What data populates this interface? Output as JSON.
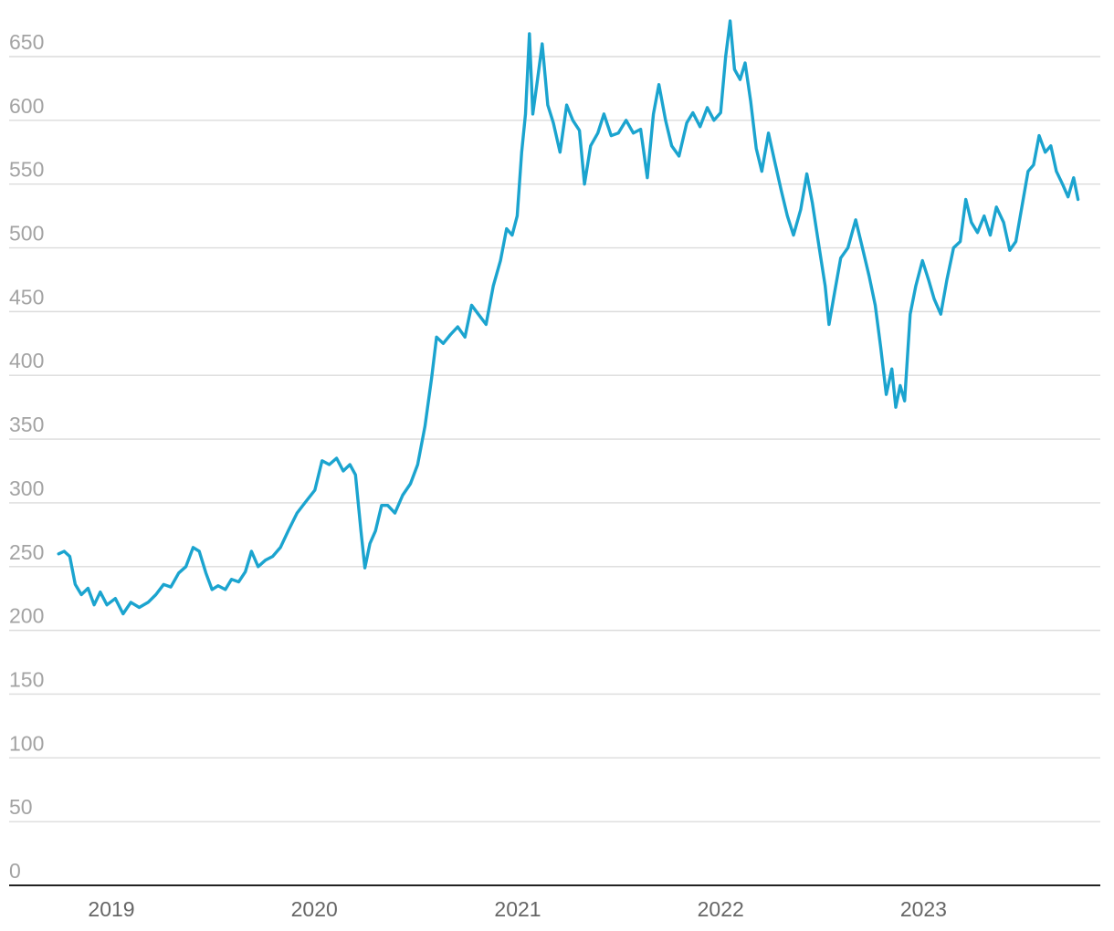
{
  "chart_data": {
    "type": "line",
    "title": "",
    "xlabel": "",
    "ylabel": "",
    "ylim": [
      0,
      650
    ],
    "yticks": [
      0,
      50,
      100,
      150,
      200,
      250,
      300,
      350,
      400,
      450,
      500,
      550,
      600,
      650
    ],
    "xlim": [
      "2018-07-01",
      "2023-11-15"
    ],
    "xticks": [
      {
        "date": "2019-01-01",
        "label": "2019"
      },
      {
        "date": "2020-01-01",
        "label": "2020"
      },
      {
        "date": "2021-01-01",
        "label": "2021"
      },
      {
        "date": "2022-01-01",
        "label": "2022"
      },
      {
        "date": "2023-01-01",
        "label": "2023"
      }
    ],
    "grid": true,
    "legend": "none",
    "colors": {
      "series": "#1ba4cf",
      "grid": "#dcdcdc",
      "axis": "#222222",
      "ytick": "#a3a3a3",
      "xtick": "#666666"
    },
    "series": [
      {
        "values": [
          [
            "2018-09-28",
            260
          ],
          [
            "2018-10-08",
            262
          ],
          [
            "2018-10-18",
            258
          ],
          [
            "2018-10-28",
            236
          ],
          [
            "2018-11-08",
            228
          ],
          [
            "2018-11-20",
            233
          ],
          [
            "2018-12-01",
            220
          ],
          [
            "2018-12-12",
            230
          ],
          [
            "2018-12-24",
            220
          ],
          [
            "2019-01-08",
            225
          ],
          [
            "2019-01-22",
            213
          ],
          [
            "2019-02-05",
            222
          ],
          [
            "2019-02-20",
            218
          ],
          [
            "2019-03-08",
            222
          ],
          [
            "2019-03-22",
            228
          ],
          [
            "2019-04-05",
            236
          ],
          [
            "2019-04-18",
            234
          ],
          [
            "2019-05-02",
            245
          ],
          [
            "2019-05-15",
            250
          ],
          [
            "2019-05-28",
            265
          ],
          [
            "2019-06-08",
            262
          ],
          [
            "2019-06-20",
            245
          ],
          [
            "2019-07-01",
            232
          ],
          [
            "2019-07-12",
            235
          ],
          [
            "2019-07-25",
            232
          ],
          [
            "2019-08-05",
            240
          ],
          [
            "2019-08-18",
            238
          ],
          [
            "2019-08-30",
            246
          ],
          [
            "2019-09-10",
            262
          ],
          [
            "2019-09-22",
            250
          ],
          [
            "2019-10-05",
            255
          ],
          [
            "2019-10-18",
            258
          ],
          [
            "2019-11-01",
            265
          ],
          [
            "2019-11-15",
            278
          ],
          [
            "2019-12-01",
            292
          ],
          [
            "2019-12-15",
            300
          ],
          [
            "2020-01-02",
            310
          ],
          [
            "2020-01-15",
            333
          ],
          [
            "2020-01-28",
            330
          ],
          [
            "2020-02-10",
            335
          ],
          [
            "2020-02-22",
            325
          ],
          [
            "2020-03-05",
            330
          ],
          [
            "2020-03-15",
            322
          ],
          [
            "2020-03-25",
            278
          ],
          [
            "2020-04-01",
            249
          ],
          [
            "2020-04-10",
            268
          ],
          [
            "2020-04-20",
            278
          ],
          [
            "2020-05-01",
            298
          ],
          [
            "2020-05-12",
            298
          ],
          [
            "2020-05-25",
            292
          ],
          [
            "2020-06-08",
            306
          ],
          [
            "2020-06-22",
            315
          ],
          [
            "2020-07-05",
            330
          ],
          [
            "2020-07-18",
            360
          ],
          [
            "2020-07-30",
            398
          ],
          [
            "2020-08-08",
            430
          ],
          [
            "2020-08-20",
            425
          ],
          [
            "2020-09-02",
            432
          ],
          [
            "2020-09-15",
            438
          ],
          [
            "2020-09-28",
            430
          ],
          [
            "2020-10-10",
            455
          ],
          [
            "2020-10-22",
            448
          ],
          [
            "2020-11-05",
            440
          ],
          [
            "2020-11-18",
            470
          ],
          [
            "2020-12-01",
            490
          ],
          [
            "2020-12-12",
            515
          ],
          [
            "2020-12-22",
            510
          ],
          [
            "2020-12-31",
            525
          ],
          [
            "2021-01-08",
            575
          ],
          [
            "2021-01-15",
            605
          ],
          [
            "2021-01-22",
            668
          ],
          [
            "2021-01-28",
            605
          ],
          [
            "2021-02-05",
            630
          ],
          [
            "2021-02-14",
            660
          ],
          [
            "2021-02-24",
            612
          ],
          [
            "2021-03-06",
            598
          ],
          [
            "2021-03-18",
            575
          ],
          [
            "2021-03-30",
            612
          ],
          [
            "2021-04-10",
            600
          ],
          [
            "2021-04-22",
            592
          ],
          [
            "2021-05-01",
            550
          ],
          [
            "2021-05-12",
            580
          ],
          [
            "2021-05-25",
            590
          ],
          [
            "2021-06-05",
            605
          ],
          [
            "2021-06-18",
            588
          ],
          [
            "2021-07-01",
            590
          ],
          [
            "2021-07-15",
            600
          ],
          [
            "2021-07-28",
            590
          ],
          [
            "2021-08-10",
            593
          ],
          [
            "2021-08-22",
            555
          ],
          [
            "2021-09-02",
            605
          ],
          [
            "2021-09-12",
            628
          ],
          [
            "2021-09-24",
            600
          ],
          [
            "2021-10-05",
            580
          ],
          [
            "2021-10-18",
            572
          ],
          [
            "2021-11-01",
            598
          ],
          [
            "2021-11-12",
            606
          ],
          [
            "2021-11-25",
            595
          ],
          [
            "2021-12-08",
            610
          ],
          [
            "2021-12-20",
            600
          ],
          [
            "2022-01-01",
            606
          ],
          [
            "2022-01-10",
            650
          ],
          [
            "2022-01-18",
            678
          ],
          [
            "2022-01-26",
            640
          ],
          [
            "2022-02-05",
            632
          ],
          [
            "2022-02-14",
            645
          ],
          [
            "2022-02-24",
            615
          ],
          [
            "2022-03-06",
            578
          ],
          [
            "2022-03-16",
            560
          ],
          [
            "2022-03-28",
            590
          ],
          [
            "2022-04-08",
            568
          ],
          [
            "2022-04-20",
            545
          ],
          [
            "2022-05-01",
            525
          ],
          [
            "2022-05-12",
            510
          ],
          [
            "2022-05-25",
            530
          ],
          [
            "2022-06-05",
            558
          ],
          [
            "2022-06-15",
            535
          ],
          [
            "2022-06-28",
            498
          ],
          [
            "2022-07-08",
            470
          ],
          [
            "2022-07-15",
            440
          ],
          [
            "2022-07-25",
            465
          ],
          [
            "2022-08-05",
            492
          ],
          [
            "2022-08-18",
            500
          ],
          [
            "2022-09-01",
            522
          ],
          [
            "2022-09-12",
            502
          ],
          [
            "2022-09-25",
            478
          ],
          [
            "2022-10-06",
            455
          ],
          [
            "2022-10-16",
            422
          ],
          [
            "2022-10-26",
            385
          ],
          [
            "2022-11-05",
            405
          ],
          [
            "2022-11-12",
            375
          ],
          [
            "2022-11-20",
            392
          ],
          [
            "2022-11-28",
            380
          ],
          [
            "2022-12-08",
            448
          ],
          [
            "2022-12-18",
            470
          ],
          [
            "2022-12-30",
            490
          ],
          [
            "2023-01-10",
            475
          ],
          [
            "2023-01-20",
            460
          ],
          [
            "2023-02-01",
            448
          ],
          [
            "2023-02-12",
            475
          ],
          [
            "2023-02-24",
            500
          ],
          [
            "2023-03-08",
            505
          ],
          [
            "2023-03-18",
            538
          ],
          [
            "2023-03-28",
            520
          ],
          [
            "2023-04-08",
            512
          ],
          [
            "2023-04-20",
            525
          ],
          [
            "2023-05-01",
            510
          ],
          [
            "2023-05-12",
            532
          ],
          [
            "2023-05-25",
            520
          ],
          [
            "2023-06-05",
            498
          ],
          [
            "2023-06-16",
            505
          ],
          [
            "2023-06-26",
            530
          ],
          [
            "2023-07-08",
            560
          ],
          [
            "2023-07-18",
            565
          ],
          [
            "2023-07-28",
            588
          ],
          [
            "2023-08-08",
            575
          ],
          [
            "2023-08-18",
            580
          ],
          [
            "2023-08-28",
            560
          ],
          [
            "2023-09-08",
            550
          ],
          [
            "2023-09-18",
            540
          ],
          [
            "2023-09-28",
            555
          ],
          [
            "2023-10-06",
            538
          ]
        ]
      }
    ]
  }
}
